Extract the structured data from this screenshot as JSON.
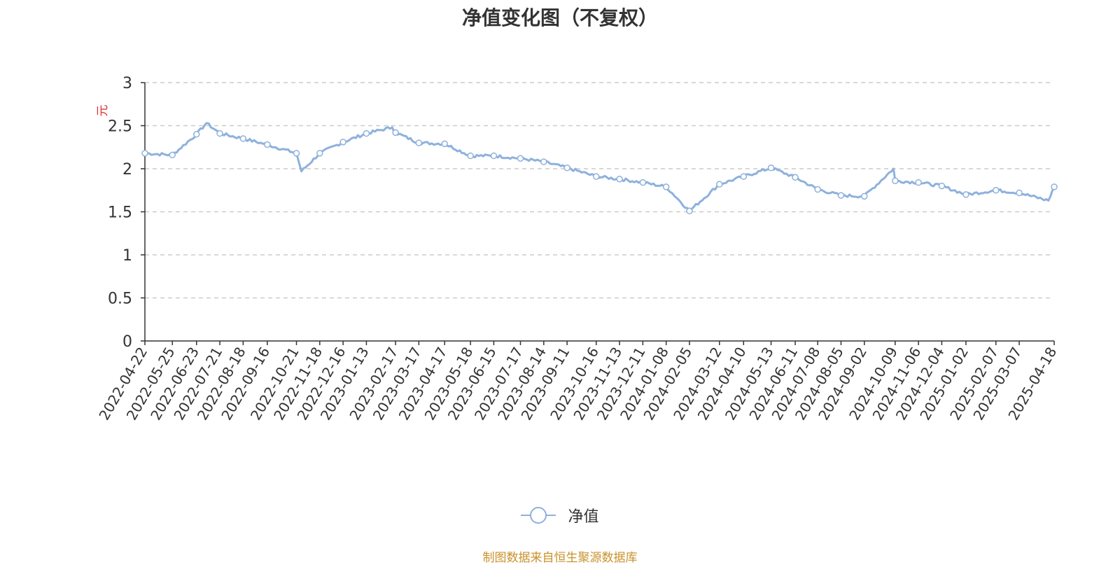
{
  "chart_data": {
    "type": "line",
    "title": "净值变化图（不复权）",
    "ylabel": "元",
    "ylim": [
      0,
      3
    ],
    "yticks": [
      "0",
      "0.5",
      "1",
      "1.5",
      "2",
      "2.5",
      "3"
    ],
    "grid": true,
    "legend_position": "bottom",
    "source_note": "制图数据来自恒生聚源数据库",
    "colors": {
      "series": "#8eb1dc",
      "ylabel": "#e03030",
      "source": "#c9922b"
    },
    "x": [
      "2022-04-22",
      "2022-05-25",
      "2022-06-23",
      "2022-07-21",
      "2022-08-18",
      "2022-09-16",
      "2022-10-21",
      "2022-11-18",
      "2022-12-16",
      "2023-01-13",
      "2023-02-17",
      "2023-03-17",
      "2023-04-17",
      "2023-05-18",
      "2023-06-15",
      "2023-07-17",
      "2023-08-14",
      "2023-09-11",
      "2023-10-16",
      "2023-11-13",
      "2023-12-11",
      "2024-01-08",
      "2024-02-05",
      "2024-03-12",
      "2024-04-10",
      "2024-05-13",
      "2024-06-11",
      "2024-07-08",
      "2024-08-05",
      "2024-09-02",
      "2024-10-09",
      "2024-11-06",
      "2024-12-04",
      "2025-01-02",
      "2025-02-07",
      "2025-03-07",
      "2025-04-18"
    ],
    "series": [
      {
        "name": "净值",
        "values": [
          2.18,
          2.16,
          2.4,
          2.41,
          2.35,
          2.28,
          2.18,
          2.18,
          2.31,
          2.41,
          2.42,
          2.3,
          2.29,
          2.15,
          2.15,
          2.12,
          2.08,
          2.01,
          1.91,
          1.88,
          1.84,
          1.79,
          1.51,
          1.82,
          1.91,
          2.01,
          1.9,
          1.76,
          1.69,
          1.68,
          1.86,
          1.84,
          1.8,
          1.7,
          1.75,
          1.72,
          1.79
        ],
        "extra_points": [
          {
            "x": "2022-07-05",
            "y": 2.53
          },
          {
            "x": "2022-10-27",
            "y": 1.97
          },
          {
            "x": "2023-02-13",
            "y": 2.48
          },
          {
            "x": "2024-10-07",
            "y": 2.0
          },
          {
            "x": "2025-04-11",
            "y": 1.63
          }
        ]
      }
    ]
  }
}
